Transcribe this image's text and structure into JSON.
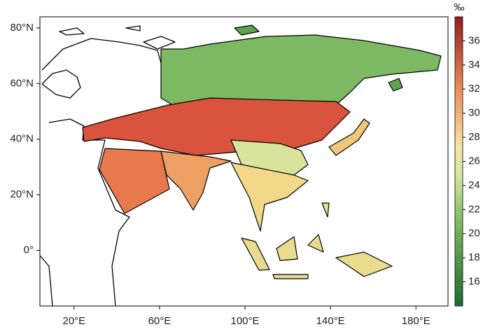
{
  "map": {
    "xlim": [
      4,
      195
    ],
    "ylim": [
      -20,
      84
    ],
    "xticks": [
      {
        "value": 20,
        "label": "20°E"
      },
      {
        "value": 60,
        "label": "60°E"
      },
      {
        "value": 100,
        "label": "100°E"
      },
      {
        "value": 140,
        "label": "140°E"
      },
      {
        "value": 180,
        "label": "180°E"
      }
    ],
    "yticks": [
      {
        "value": 80,
        "label": "80°N"
      },
      {
        "value": 60,
        "label": "60°N"
      },
      {
        "value": 40,
        "label": "40°N"
      },
      {
        "value": 20,
        "label": "20°N"
      },
      {
        "value": 0,
        "label": "0°"
      }
    ]
  },
  "colorbar": {
    "unit": "‰",
    "lim": [
      14,
      38
    ],
    "ticks": [
      16,
      18,
      20,
      22,
      24,
      26,
      28,
      30,
      32,
      34,
      36
    ]
  }
}
